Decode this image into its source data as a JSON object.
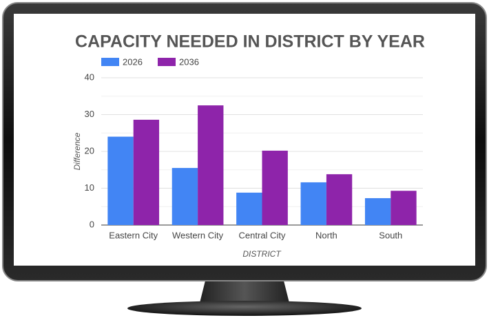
{
  "chart_data": {
    "type": "bar",
    "title": "CAPACITY NEEDED IN DISTRICT BY YEAR",
    "x_label": "DISTRICT",
    "y_label": "Difference",
    "categories": [
      "Eastern City",
      "Western City",
      "Central City",
      "North",
      "South"
    ],
    "series": [
      {
        "name": "2026",
        "color": "#4285f4",
        "values": [
          24,
          15.5,
          8.8,
          11.6,
          7.3
        ]
      },
      {
        "name": "2036",
        "color": "#8e24aa",
        "values": [
          28.6,
          32.5,
          20.2,
          13.8,
          9.3
        ]
      }
    ],
    "ylim": [
      0,
      40
    ],
    "yticks": [
      0,
      10,
      20,
      30,
      40
    ],
    "minor_yticks": [
      5,
      15,
      25,
      35
    ],
    "grid": true,
    "legend": "top-left"
  }
}
